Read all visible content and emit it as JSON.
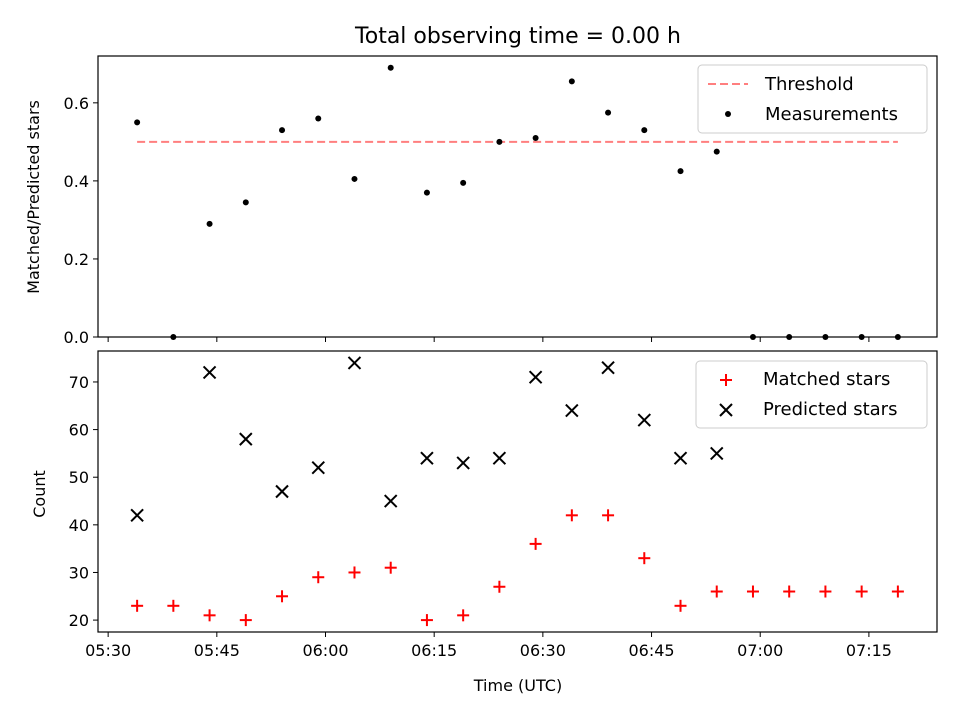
{
  "chart_data": [
    {
      "type": "scatter",
      "title": "Total observing time = 0.00 h",
      "xlabel": "",
      "ylabel": "Matched/Predicted stars",
      "ylim": [
        0,
        0.72
      ],
      "yticks": [
        "0.0",
        "0.2",
        "0.4",
        "0.6"
      ],
      "legend_position": "top-right",
      "threshold": {
        "name": "Threshold",
        "value": 0.5,
        "x_range": [
          "05:34",
          "07:19"
        ],
        "color": "#ff7f7f",
        "style": "dashed"
      },
      "series": [
        {
          "name": "Measurements",
          "color": "#000000",
          "marker": "dot",
          "points": [
            [
              "05:34",
              0.55
            ],
            [
              "05:39",
              0.0
            ],
            [
              "05:44",
              0.29
            ],
            [
              "05:49",
              0.345
            ],
            [
              "05:54",
              0.53
            ],
            [
              "05:59",
              0.56
            ],
            [
              "06:04",
              0.405
            ],
            [
              "06:09",
              0.69
            ],
            [
              "06:14",
              0.37
            ],
            [
              "06:19",
              0.395
            ],
            [
              "06:24",
              0.5
            ],
            [
              "06:29",
              0.51
            ],
            [
              "06:34",
              0.655
            ],
            [
              "06:39",
              0.575
            ],
            [
              "06:44",
              0.53
            ],
            [
              "06:49",
              0.425
            ],
            [
              "06:54",
              0.475
            ],
            [
              "06:59",
              0.0
            ],
            [
              "07:04",
              0.0
            ],
            [
              "07:09",
              0.0
            ],
            [
              "07:14",
              0.0
            ],
            [
              "07:19",
              0.0
            ]
          ]
        }
      ]
    },
    {
      "type": "scatter",
      "title": "",
      "xlabel": "Time (UTC)",
      "ylabel": "Count",
      "ylim": [
        17.5,
        76.5
      ],
      "yticks": [
        "20",
        "30",
        "40",
        "50",
        "60",
        "70"
      ],
      "xticks": [
        "05:30",
        "05:45",
        "06:00",
        "06:15",
        "06:30",
        "06:45",
        "07:00",
        "07:15"
      ],
      "legend_position": "top-right",
      "series": [
        {
          "name": "Matched stars",
          "color": "#ff0000",
          "marker": "plus",
          "points": [
            [
              "05:34",
              23
            ],
            [
              "05:39",
              23
            ],
            [
              "05:44",
              21
            ],
            [
              "05:49",
              20
            ],
            [
              "05:54",
              25
            ],
            [
              "05:59",
              29
            ],
            [
              "06:04",
              30
            ],
            [
              "06:09",
              31
            ],
            [
              "06:14",
              20
            ],
            [
              "06:19",
              21
            ],
            [
              "06:24",
              27
            ],
            [
              "06:29",
              36
            ],
            [
              "06:34",
              42
            ],
            [
              "06:39",
              42
            ],
            [
              "06:44",
              33
            ],
            [
              "06:49",
              23
            ],
            [
              "06:54",
              26
            ],
            [
              "06:59",
              26
            ],
            [
              "07:04",
              26
            ],
            [
              "07:09",
              26
            ],
            [
              "07:14",
              26
            ],
            [
              "07:19",
              26
            ]
          ]
        },
        {
          "name": "Predicted stars",
          "color": "#000000",
          "marker": "x",
          "points": [
            [
              "05:34",
              42
            ],
            [
              "05:44",
              72
            ],
            [
              "05:49",
              58
            ],
            [
              "05:54",
              47
            ],
            [
              "05:59",
              52
            ],
            [
              "06:04",
              74
            ],
            [
              "06:09",
              45
            ],
            [
              "06:14",
              54
            ],
            [
              "06:19",
              53
            ],
            [
              "06:24",
              54
            ],
            [
              "06:29",
              71
            ],
            [
              "06:34",
              64
            ],
            [
              "06:39",
              73
            ],
            [
              "06:44",
              62
            ],
            [
              "06:49",
              54
            ],
            [
              "06:54",
              55
            ]
          ]
        }
      ]
    }
  ]
}
